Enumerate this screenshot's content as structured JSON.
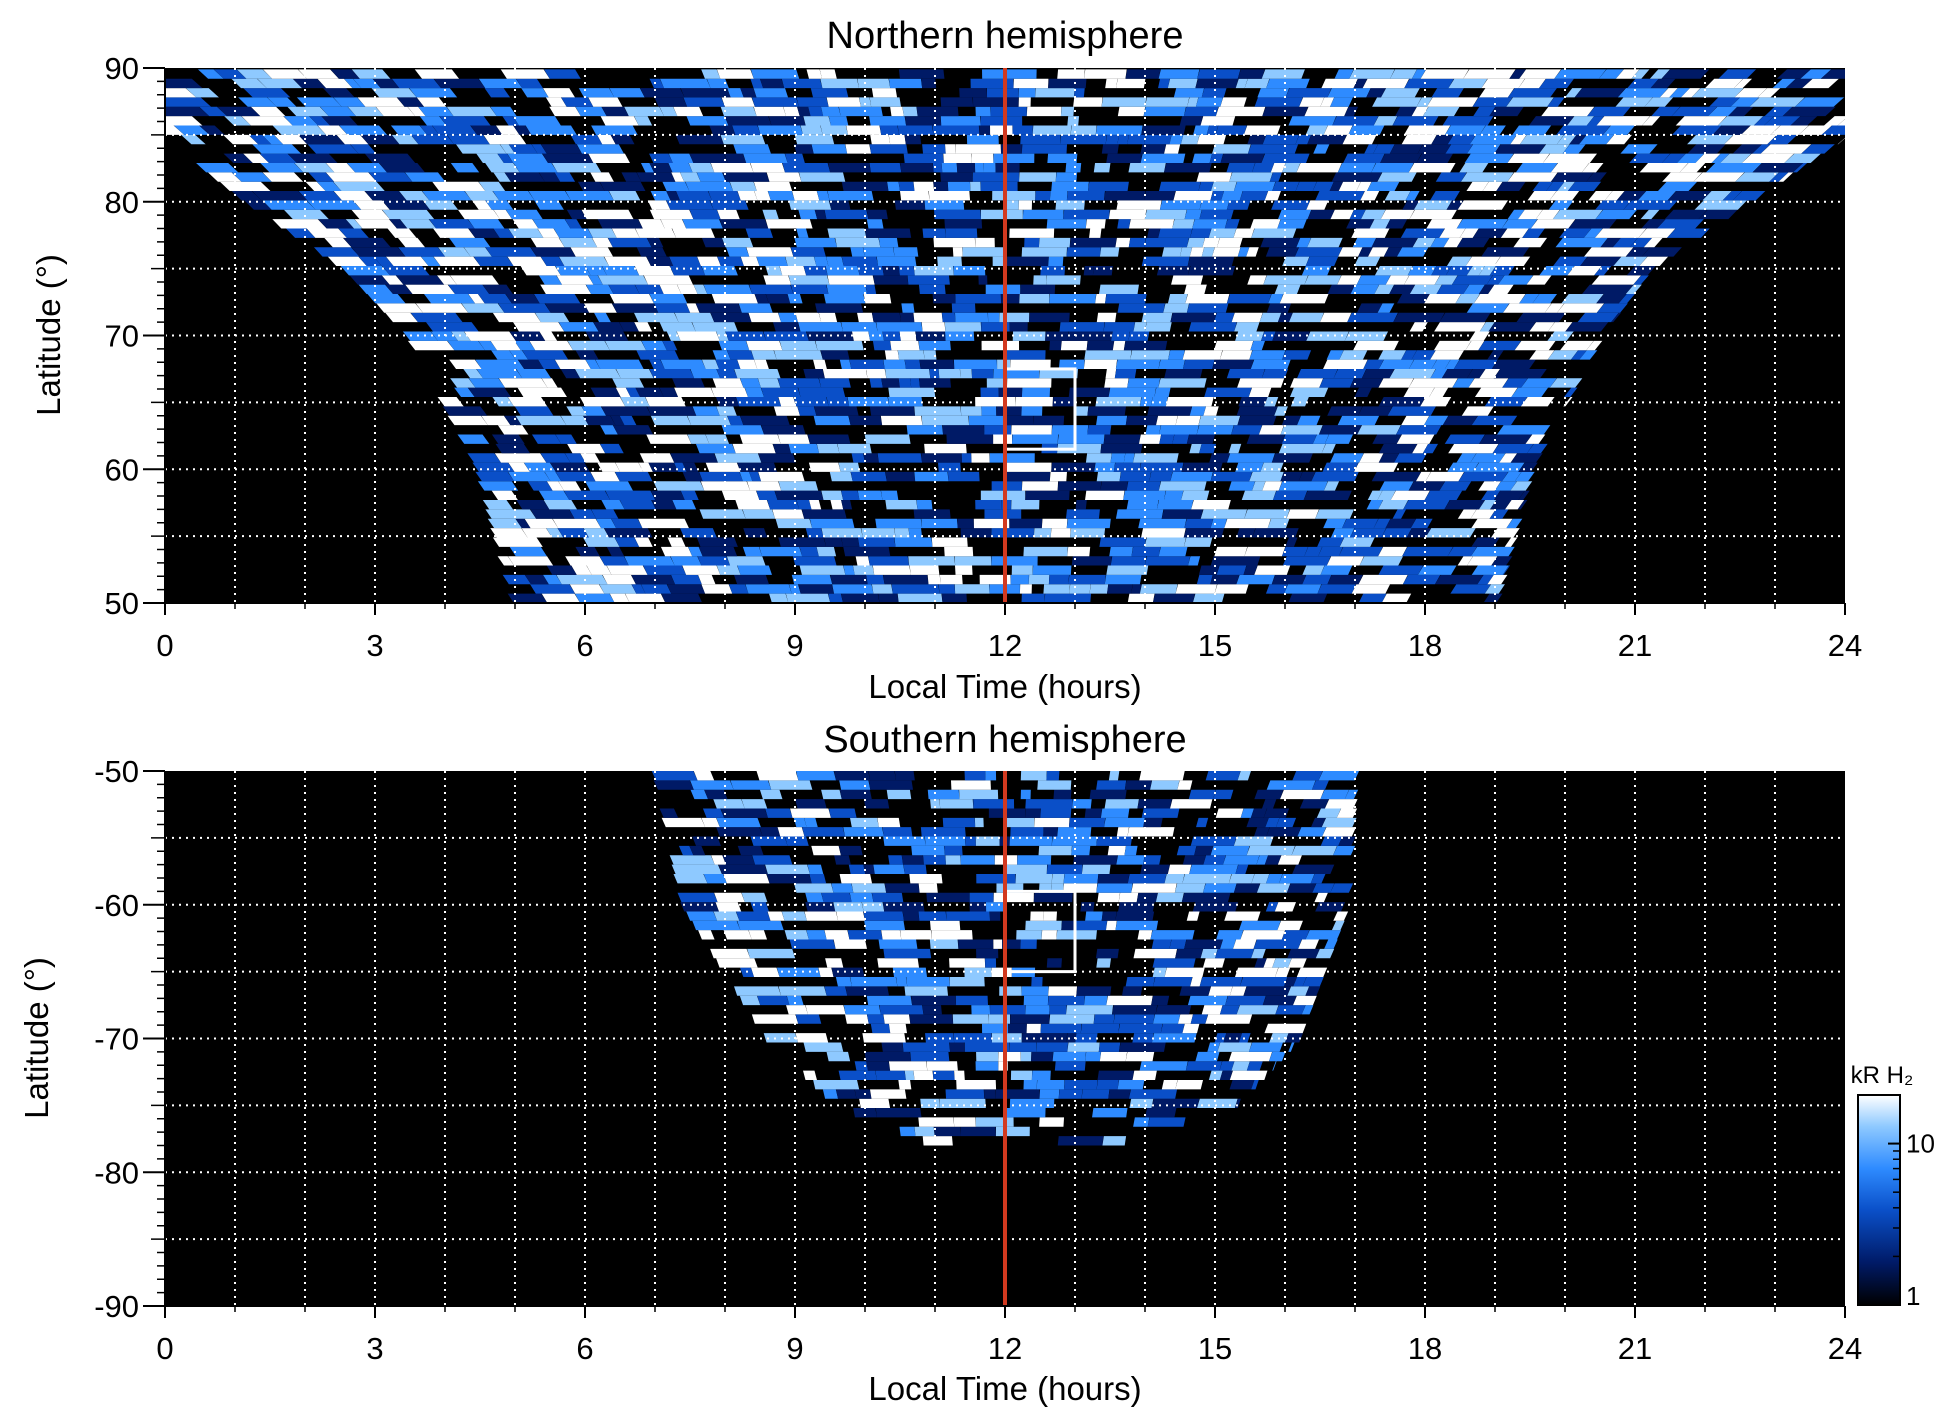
{
  "chart_data": [
    {
      "type": "heatmap",
      "title": "Northern hemisphere",
      "xlabel": "Local Time (hours)",
      "ylabel": "Latitude (°)",
      "xlim": [
        0,
        24
      ],
      "ylim": [
        50,
        90
      ],
      "xticks": [
        "0",
        "3",
        "6",
        "9",
        "12",
        "15",
        "18",
        "21",
        "24"
      ],
      "yticks": [
        "50",
        "60",
        "70",
        "80",
        "90"
      ],
      "grid": true,
      "noon_line_local_time": 12,
      "highlight_box": {
        "lt_range": [
          12,
          13
        ],
        "lat_range": [
          61.5,
          67.5
        ]
      },
      "coverage": {
        "description_lt_ranges": [
          {
            "lat": 50,
            "lt_range": [
              5.0,
              19.0
            ]
          },
          {
            "lat": 60,
            "lt_range": [
              4.5,
              19.5
            ]
          },
          {
            "lat": 70,
            "lt_range": [
              3.5,
              20.5
            ]
          },
          {
            "lat": 75,
            "lt_range": [
              2.6,
              21.2
            ]
          },
          {
            "lat": 80,
            "lt_range": [
              1.2,
              22.6
            ]
          },
          {
            "lat": 85,
            "lt_range": [
              0.0,
              24.0
            ]
          },
          {
            "lat": 90,
            "lt_range": [
              0.0,
              24.0
            ]
          }
        ]
      }
    },
    {
      "type": "heatmap",
      "title": "Southern hemisphere",
      "xlabel": "Local Time (hours)",
      "ylabel": "Latitude (°)",
      "xlim": [
        0,
        24
      ],
      "ylim": [
        -90,
        -50
      ],
      "xticks": [
        "0",
        "3",
        "6",
        "9",
        "12",
        "15",
        "18",
        "21",
        "24"
      ],
      "yticks": [
        "-90",
        "-80",
        "-70",
        "-60",
        "-50"
      ],
      "grid": true,
      "noon_line_local_time": 12,
      "highlight_box": {
        "lt_range": [
          12,
          13
        ],
        "lat_range": [
          -65,
          -59
        ]
      },
      "coverage": {
        "description_lt_ranges": [
          {
            "lat": -50,
            "lt_range": [
              7.0,
              17.0
            ]
          },
          {
            "lat": -60,
            "lt_range": [
              7.4,
              16.9
            ]
          },
          {
            "lat": -70,
            "lt_range": [
              8.6,
              16.2
            ]
          },
          {
            "lat": -75,
            "lt_range": [
              9.6,
              15.3
            ]
          },
          {
            "lat": -78,
            "lt_range": [
              11.0,
              13.5
            ]
          }
        ]
      }
    }
  ],
  "colorbar": {
    "label": "kR H₂",
    "scale": "log",
    "range": [
      1,
      20
    ],
    "tick_labels": [
      "1",
      "10"
    ],
    "colors": [
      "#000000",
      "#001a66",
      "#0a4fc8",
      "#2e8bff",
      "#8ec9ff",
      "#ffffff"
    ]
  },
  "colors": {
    "noon_line": "#d2391f",
    "grid": "#ffffff",
    "background": "#000000"
  }
}
